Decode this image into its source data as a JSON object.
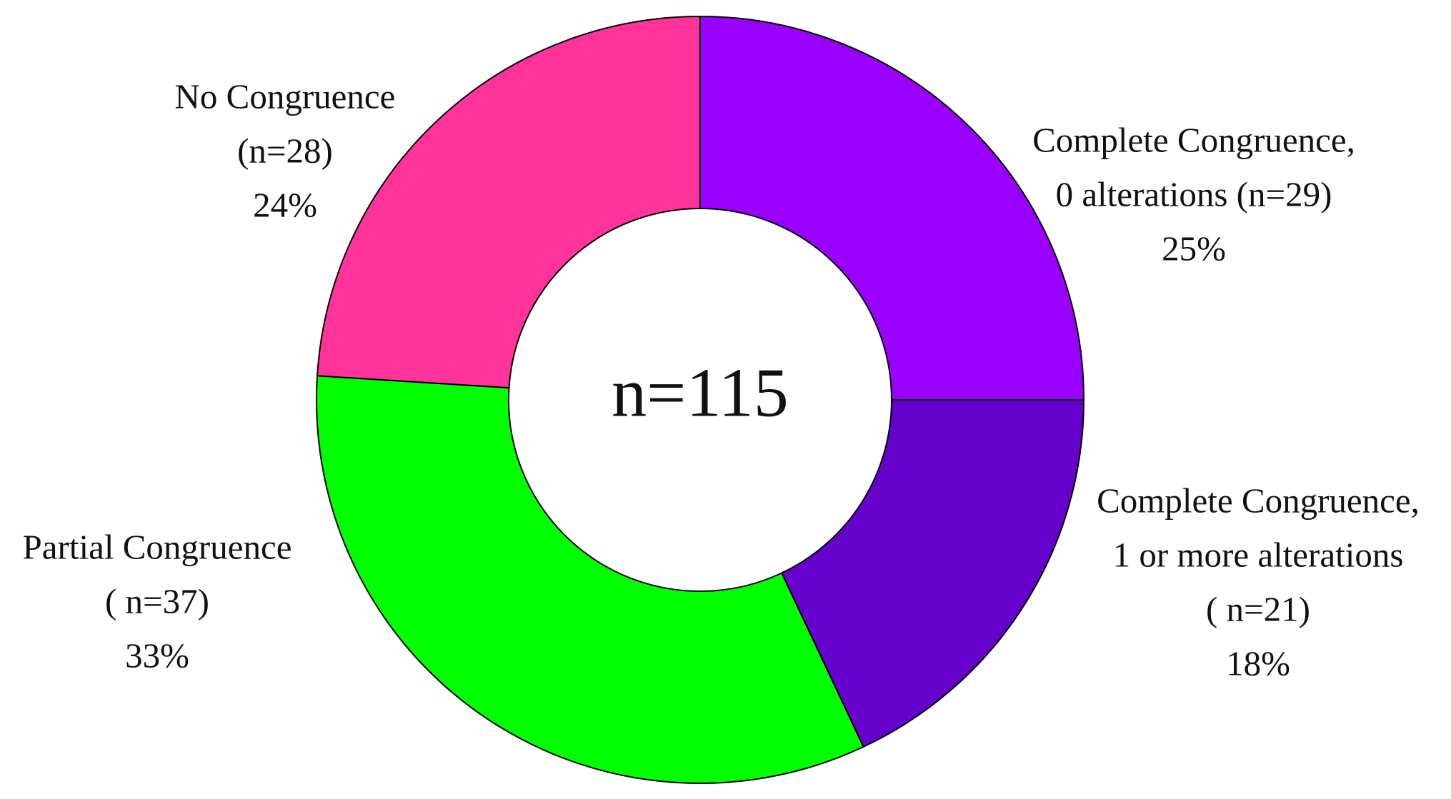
{
  "chart_data": {
    "type": "donut",
    "center_label": "n=115",
    "categories": [
      [
        "Complete Congruence,",
        "0 alterations (n=29)"
      ],
      [
        "Complete Congruence,",
        "1 or more alterations",
        "( n=21)"
      ],
      [
        "Partial Congruence",
        "( n=37)"
      ],
      [
        "No Congruence",
        "(n=28)"
      ]
    ],
    "values": [
      25,
      18,
      33,
      24
    ],
    "value_labels": [
      "25%",
      "18%",
      "33%",
      "24%"
    ],
    "colors": [
      "#9900ff",
      "#6600cc",
      "#00ff00",
      "#ff3399"
    ]
  }
}
